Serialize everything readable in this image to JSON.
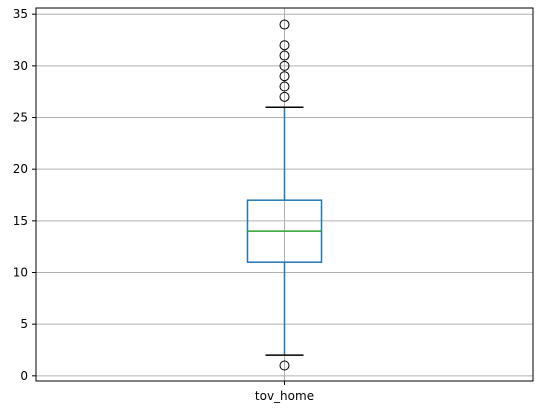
{
  "chart_data": {
    "type": "box",
    "categories": [
      "tov_home"
    ],
    "series": [
      {
        "name": "tov_home",
        "whisker_low": 2,
        "q1": 11,
        "median": 14,
        "q3": 17,
        "whisker_high": 26,
        "outliers": [
          1,
          27,
          28,
          29,
          30,
          31,
          32,
          34
        ]
      }
    ],
    "title": "",
    "xlabel": "",
    "ylabel": "",
    "ylim": [
      -0.5,
      35.6
    ],
    "yticks": [
      0,
      5,
      10,
      15,
      20,
      25,
      30,
      35
    ],
    "grid": true,
    "colors": {
      "box": "#1f77b4",
      "median": "#2ca02c",
      "whisker_cap": "#000000",
      "grid": "#b0b0b0",
      "outlier": "#000000"
    }
  }
}
